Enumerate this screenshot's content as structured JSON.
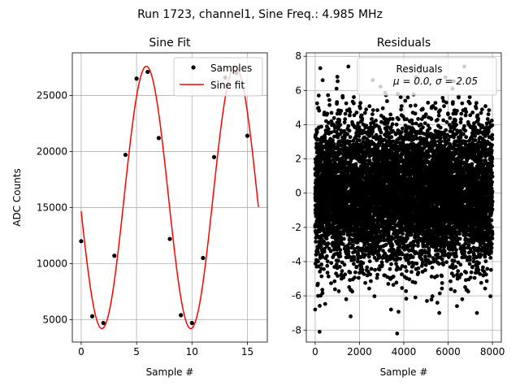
{
  "figure": {
    "suptitle": "Run 1723, channel1, Sine Freq.: 4.985 MHz"
  },
  "chart_data": [
    {
      "type": "scatter",
      "title": "Sine Fit",
      "xlabel": "Sample #",
      "ylabel": "ADC Counts",
      "xlim": [
        -0.8,
        16.8
      ],
      "ylim": [
        3000,
        28800
      ],
      "xticks": [
        0,
        5,
        10,
        15
      ],
      "yticks": [
        5000,
        10000,
        15000,
        20000,
        25000
      ],
      "grid": true,
      "legend_placement": "top-right",
      "series": [
        {
          "name": "Samples",
          "kind": "scatter",
          "color": "#000000",
          "x": [
            0,
            1,
            2,
            3,
            4,
            5,
            6,
            7,
            8,
            9,
            10,
            11,
            12,
            13,
            14,
            15
          ],
          "y": [
            12000,
            5300,
            4700,
            10700,
            19700,
            26500,
            27100,
            21200,
            12200,
            5400,
            4700,
            10500,
            19500,
            26600,
            27000,
            21400
          ]
        },
        {
          "name": "Sine fit",
          "kind": "line",
          "color": "#ff0000",
          "model": {
            "offset": 15900,
            "amplitude": 11700,
            "period": 8.02,
            "phase_deg": 186,
            "x_min": 0,
            "x_max": 16
          }
        }
      ]
    },
    {
      "type": "scatter",
      "title": "Residuals",
      "xlabel": "Sample #",
      "ylabel": "",
      "xlim": [
        -400,
        8400
      ],
      "ylim": [
        -8.7,
        8.2
      ],
      "xticks": [
        0,
        2000,
        4000,
        6000,
        8000
      ],
      "yticks": [
        -8,
        -6,
        -4,
        -2,
        0,
        2,
        4,
        6,
        8
      ],
      "grid": true,
      "legend_placement": "top-right",
      "legend_lines": [
        "Residuals",
        "μ = 0.0, σ = 2.05"
      ],
      "series": [
        {
          "name": "Residuals",
          "kind": "scatter",
          "color": "#000000",
          "n_points": 8000,
          "mean": 0.0,
          "std": 2.05,
          "x_range": [
            0,
            8000
          ],
          "outliers": [
            {
              "x": 200,
              "y": -8.1
            },
            {
              "x": 3700,
              "y": -8.2
            },
            {
              "x": 230,
              "y": 7.3
            },
            {
              "x": 2600,
              "y": 6.6
            },
            {
              "x": 1000,
              "y": 6.8
            },
            {
              "x": 5600,
              "y": -7.0
            },
            {
              "x": 6400,
              "y": -6.6
            },
            {
              "x": 7300,
              "y": -7.0
            },
            {
              "x": 0,
              "y": -6.8
            },
            {
              "x": 1600,
              "y": -7.2
            }
          ]
        }
      ]
    }
  ]
}
